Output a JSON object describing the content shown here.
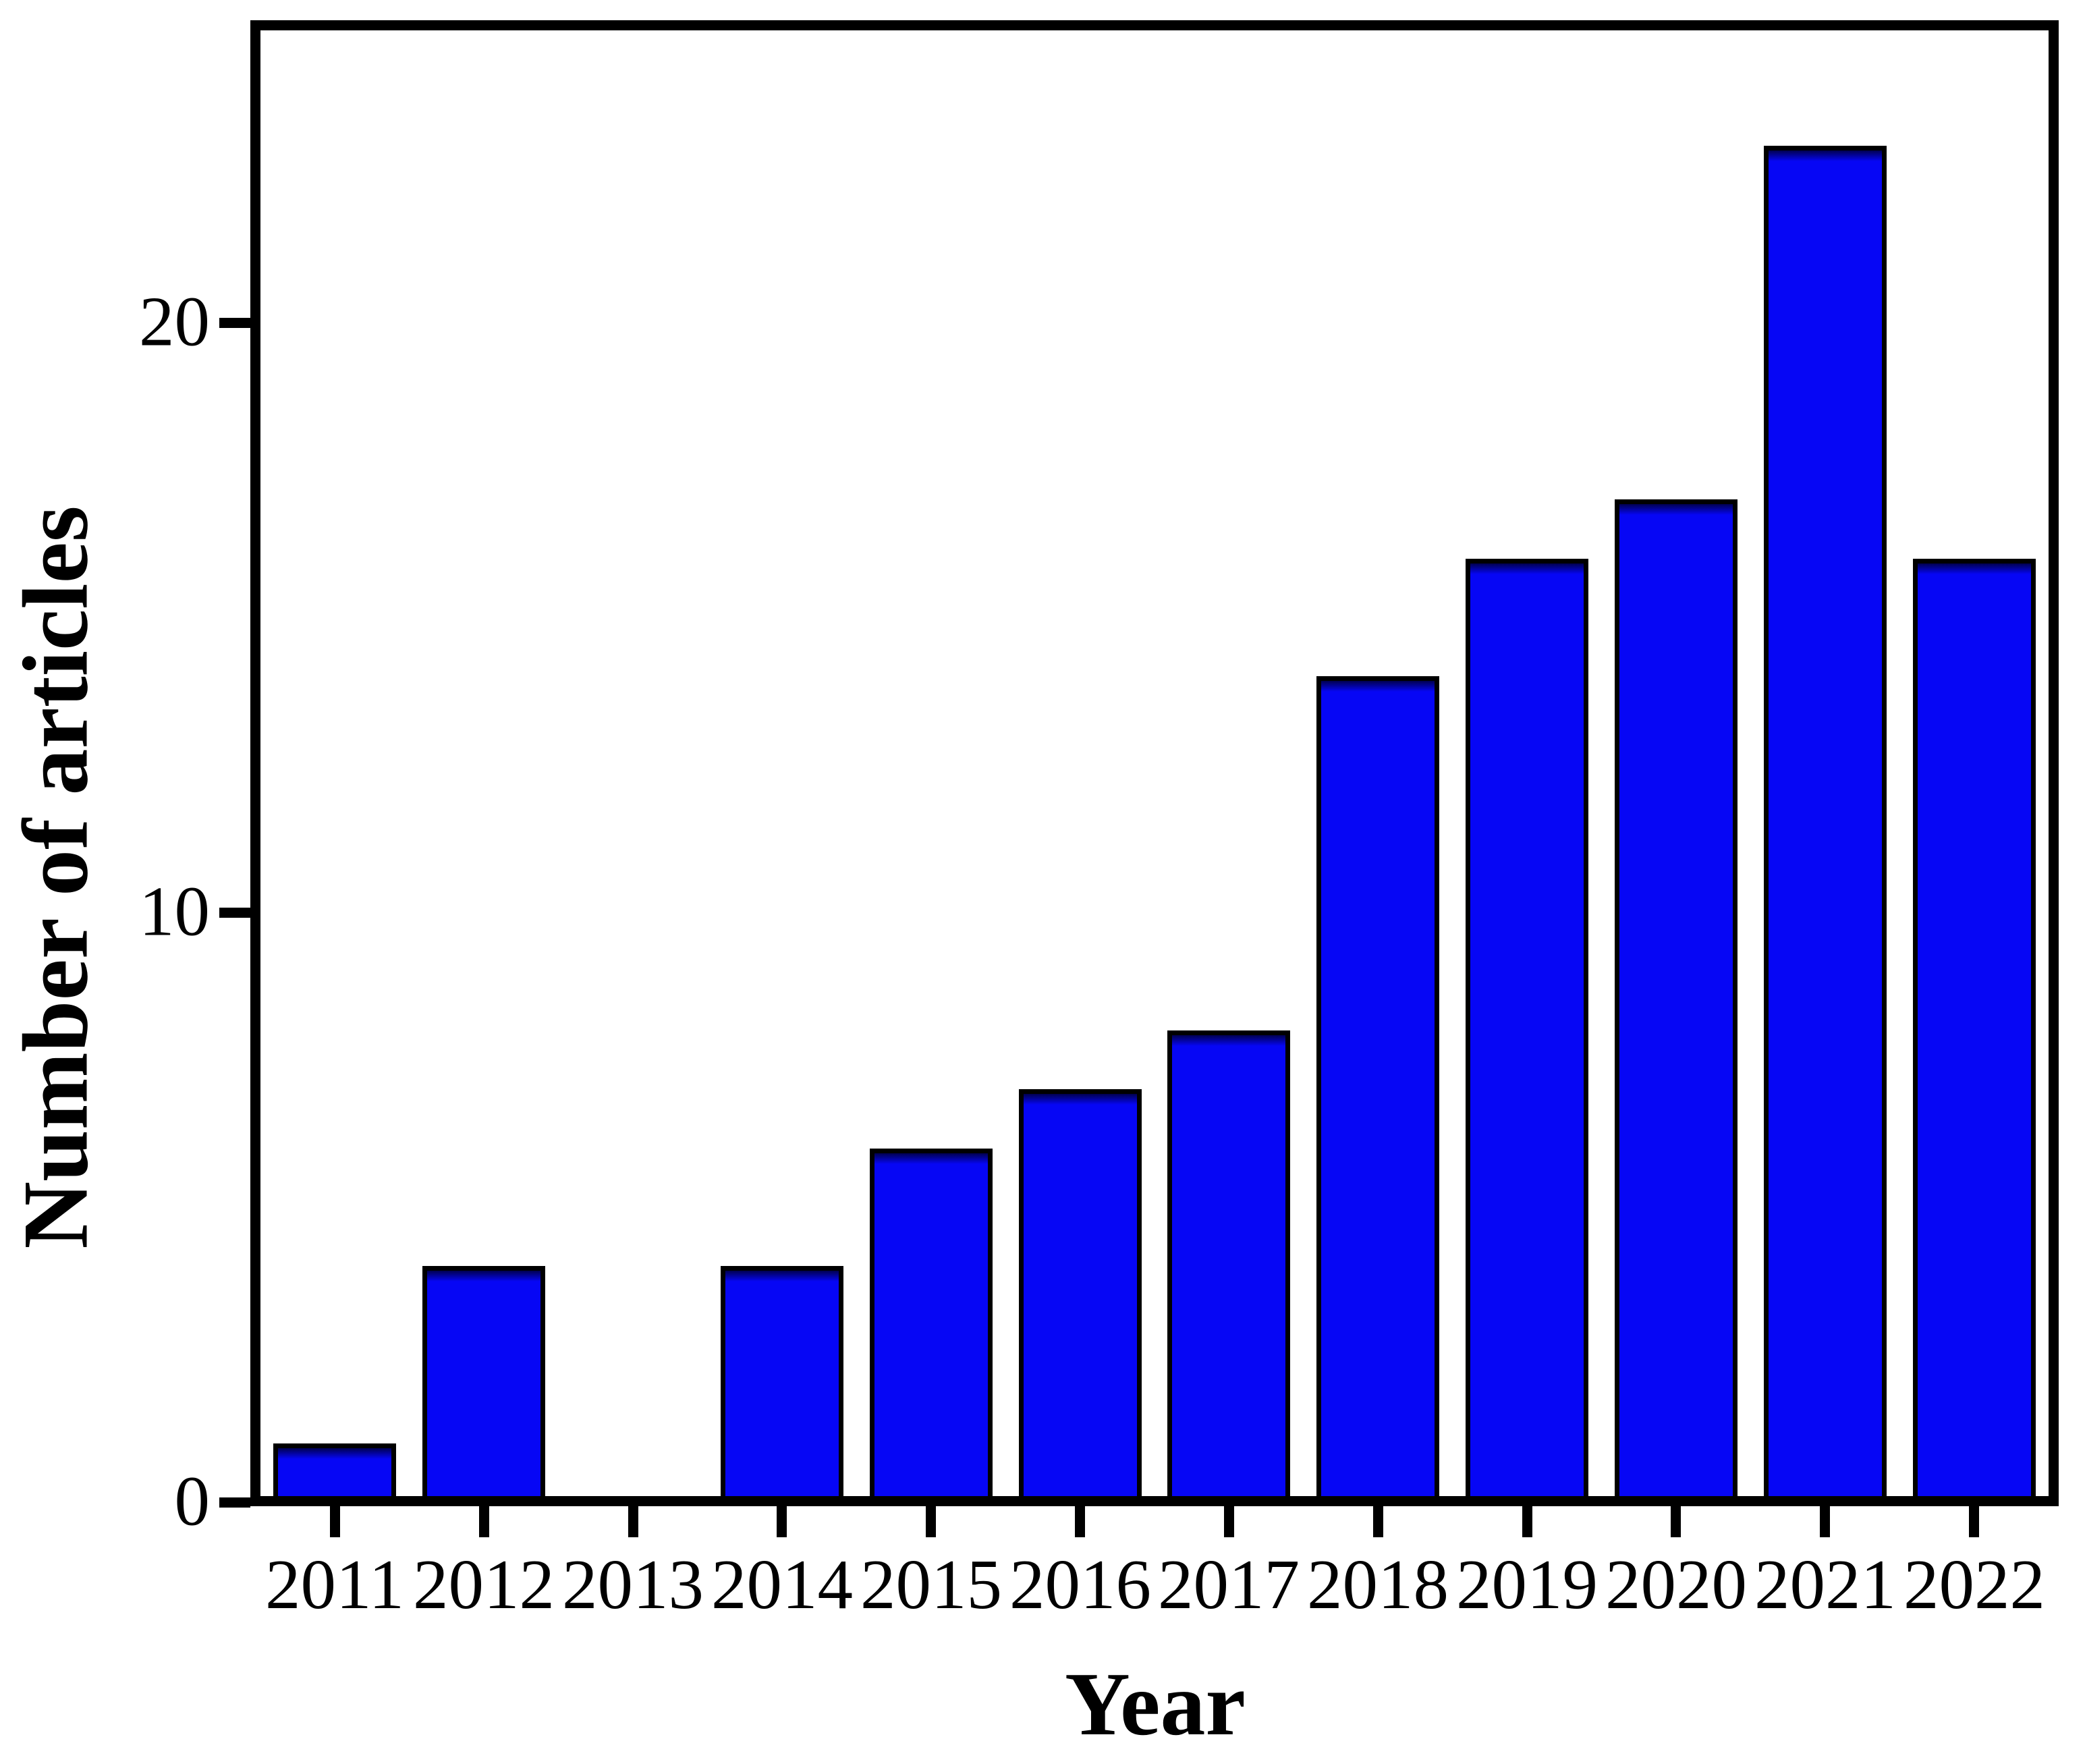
{
  "chart_data": {
    "type": "bar",
    "title": "",
    "xlabel": "Year",
    "ylabel": "Number of articles",
    "categories": [
      "2011",
      "2012",
      "2013",
      "2014",
      "2015",
      "2016",
      "2017",
      "2018",
      "2019",
      "2020",
      "2021",
      "2022"
    ],
    "values": [
      1,
      4,
      0,
      4,
      6,
      7,
      8,
      14,
      16,
      17,
      23,
      16
    ],
    "ylim": [
      0,
      25
    ],
    "yticks": [
      0,
      10,
      20
    ],
    "grid": false,
    "legend": "none",
    "colors": {
      "bar_fill": "#0606f5",
      "bar_top_shade": "#000050",
      "bar_edge": "#000000",
      "axis": "#000000",
      "background": "#ffffff",
      "text": "#000000"
    }
  }
}
